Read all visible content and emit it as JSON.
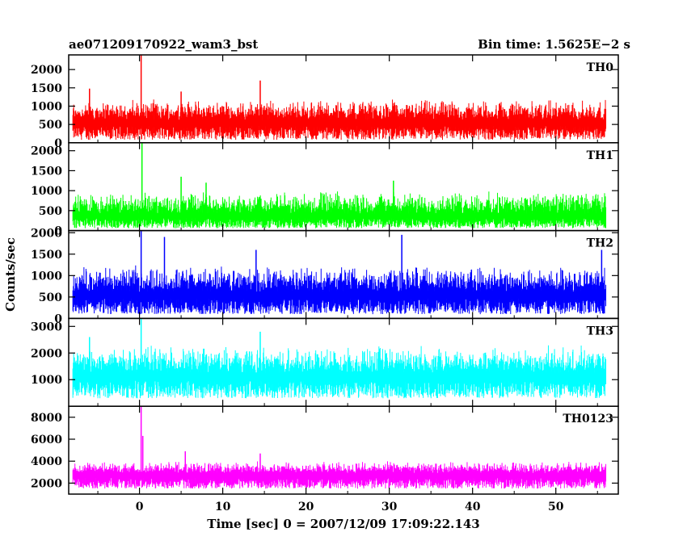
{
  "title": "ae071209170922_wam3_bst",
  "bin_time": "Bin time: 1.5625E−2 s",
  "ylabel": "Counts/sec",
  "xlabel": "Time [sec] 0 = 2007/12/09 17:09:22.143",
  "chart_data": {
    "type": "line",
    "x_axis": {
      "range": [
        -8.5,
        57.5
      ],
      "ticks": [
        0,
        10,
        20,
        30,
        40,
        50
      ],
      "tick_labels": [
        "0",
        "10",
        "20",
        "30",
        "40",
        "50"
      ],
      "data_start": -8.0,
      "data_end": 56.0
    },
    "panels": [
      {
        "name": "TH0",
        "color": "#ff0000",
        "ylim": [
          0,
          2400
        ],
        "y_ticks": [
          0,
          500,
          1000,
          1500,
          2000
        ],
        "y_tick_labels": [
          "0",
          "500",
          "1000",
          "1500",
          "2000"
        ],
        "baseline": 620,
        "noise_low": 80,
        "noise_high": 1200,
        "spikes": [
          {
            "x": 0.2,
            "y": 2400
          },
          {
            "x": 14.5,
            "y": 1700
          },
          {
            "x": -6.0,
            "y": 1480
          },
          {
            "x": 5.0,
            "y": 1400
          }
        ]
      },
      {
        "name": "TH1",
        "color": "#00ff00",
        "ylim": [
          0,
          2200
        ],
        "y_ticks": [
          0,
          500,
          1000,
          1500,
          2000
        ],
        "y_tick_labels": [
          "0",
          "500",
          "1000",
          "1500",
          "2000"
        ],
        "baseline": 420,
        "noise_low": 60,
        "noise_high": 1000,
        "spikes": [
          {
            "x": 0.3,
            "y": 2200
          },
          {
            "x": 5.0,
            "y": 1350
          },
          {
            "x": 30.5,
            "y": 1250
          },
          {
            "x": 8.0,
            "y": 1200
          }
        ]
      },
      {
        "name": "TH2",
        "color": "#0000ff",
        "ylim": [
          0,
          2050
        ],
        "y_ticks": [
          0,
          500,
          1000,
          1500,
          2000
        ],
        "y_tick_labels": [
          "0",
          "500",
          "1000",
          "1500",
          "2000"
        ],
        "baseline": 620,
        "noise_low": 100,
        "noise_high": 1250,
        "spikes": [
          {
            "x": 0.2,
            "y": 2050
          },
          {
            "x": 3.0,
            "y": 1900
          },
          {
            "x": 31.5,
            "y": 1950
          },
          {
            "x": 55.5,
            "y": 1600
          },
          {
            "x": 14.0,
            "y": 1600
          }
        ]
      },
      {
        "name": "TH3",
        "color": "#00ffff",
        "ylim": [
          0,
          3300
        ],
        "y_ticks": [
          1000,
          2000,
          3000
        ],
        "y_tick_labels": [
          "1000",
          "2000",
          "3000"
        ],
        "baseline": 1250,
        "noise_low": 300,
        "noise_high": 2300,
        "spikes": [
          {
            "x": 0.2,
            "y": 3300
          },
          {
            "x": 14.5,
            "y": 2800
          },
          {
            "x": -6.0,
            "y": 2600
          }
        ]
      },
      {
        "name": "TH0123",
        "color": "#ff00ff",
        "ylim": [
          1000,
          9000
        ],
        "y_ticks": [
          2000,
          4000,
          6000,
          8000
        ],
        "y_tick_labels": [
          "2000",
          "4000",
          "6000",
          "8000"
        ],
        "baseline": 2900,
        "noise_low": 1500,
        "noise_high": 4000,
        "spikes": [
          {
            "x": 0.2,
            "y": 9000
          },
          {
            "x": 0.4,
            "y": 6300
          },
          {
            "x": 5.5,
            "y": 4900
          },
          {
            "x": 14.5,
            "y": 4700
          }
        ]
      }
    ]
  }
}
